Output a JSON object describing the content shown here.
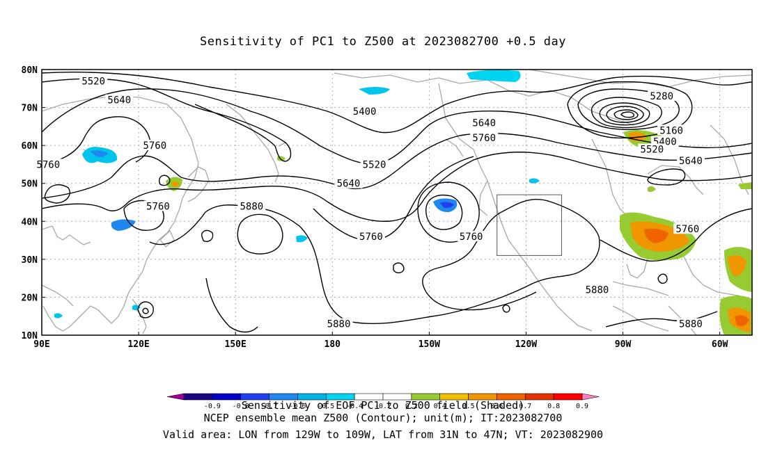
{
  "title": "Sensitivity of PC1 to Z500 at 2023082700 +0.5 day",
  "lat_labels": [
    "80N",
    "70N",
    "60N",
    "50N",
    "40N",
    "30N",
    "20N",
    "10N"
  ],
  "lon_labels": [
    "90E",
    "120E",
    "150E",
    "180",
    "150W",
    "120W",
    "90W",
    "60W"
  ],
  "contour_labels": [
    {
      "text": "5520",
      "lon": 106,
      "lat": 77
    },
    {
      "text": "5640",
      "lon": 114,
      "lat": 72
    },
    {
      "text": "5760",
      "lon": 92,
      "lat": 55
    },
    {
      "text": "5760",
      "lon": 125,
      "lat": 60
    },
    {
      "text": "5760",
      "lon": 126,
      "lat": 44
    },
    {
      "text": "5880",
      "lon": 155,
      "lat": 44
    },
    {
      "text": "5400",
      "lon": 190,
      "lat": 69
    },
    {
      "text": "5520",
      "lon": 193,
      "lat": 55
    },
    {
      "text": "5640",
      "lon": 185,
      "lat": 50
    },
    {
      "text": "5760",
      "lon": 192,
      "lat": 36
    },
    {
      "text": "5640",
      "lon": 227,
      "lat": 66
    },
    {
      "text": "5760",
      "lon": 227,
      "lat": 62
    },
    {
      "text": "5760",
      "lon": 223,
      "lat": 36
    },
    {
      "text": "5880",
      "lon": 262,
      "lat": 22
    },
    {
      "text": "5880",
      "lon": 182,
      "lat": 13
    },
    {
      "text": "5280",
      "lon": 282,
      "lat": 73
    },
    {
      "text": "5160",
      "lon": 285,
      "lat": 64
    },
    {
      "text": "5400",
      "lon": 283,
      "lat": 61
    },
    {
      "text": "5520",
      "lon": 279,
      "lat": 59
    },
    {
      "text": "5640",
      "lon": 291,
      "lat": 56
    },
    {
      "text": "5760",
      "lon": 290,
      "lat": 38
    },
    {
      "text": "5880",
      "lon": 291,
      "lat": 13
    }
  ],
  "valid_area_box": {
    "lon_min": 231,
    "lon_max": 251,
    "lat_min": 31,
    "lat_max": 47
  },
  "colorbar": {
    "colors": [
      "#a0009a",
      "#1b007f",
      "#0000c8",
      "#2040f0",
      "#1e88f0",
      "#00b4e8",
      "#00d4f0",
      "#ffffff",
      "#ffffff",
      "#96cc32",
      "#f0c000",
      "#f09600",
      "#f06400",
      "#e63200",
      "#ff0000",
      "#ff80c0"
    ],
    "tick_labels": [
      "-0.9",
      "-0.8",
      "-0.7",
      "-0.6",
      "-0.5",
      "-0.4",
      "-0.2",
      "0.2",
      "0.4",
      "0.5",
      "0.6",
      "0.7",
      "0.8",
      "0.9"
    ]
  },
  "captions": {
    "line1": "Sensitivity of EOF PC1 to Z500 field (Shaded)",
    "line2": "NCEP ensemble mean Z500 (Contour); unit(m); IT:2023082700",
    "line3": "Valid area: LON from 129W to 109W, LAT from 31N to 47N; VT: 2023082900"
  }
}
